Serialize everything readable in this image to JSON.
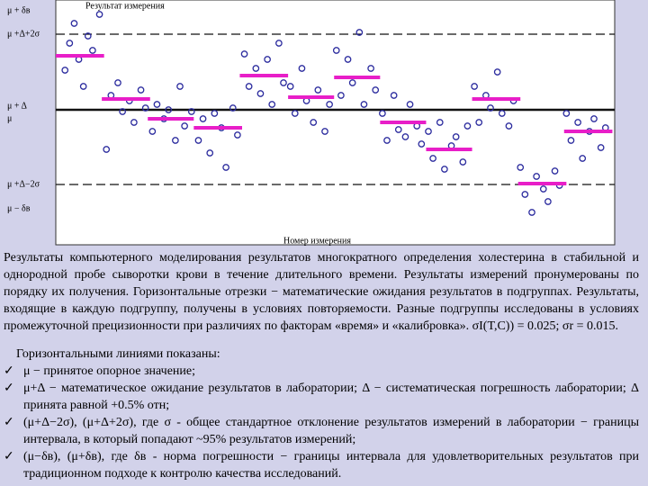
{
  "chart_data": {
    "type": "scatter",
    "title": "Результат измерения",
    "x_label": "Номер измерения",
    "color": "#2b2b9e",
    "segment_color": "#e81ec8",
    "xlim": [
      -3,
      240
    ],
    "ylim": [
      -136,
      136
    ],
    "yticks": [
      {
        "value": 124,
        "label": "μ + δв"
      },
      {
        "value": 98,
        "label": "μ +Δ+2σ"
      },
      {
        "value": 18,
        "label": "μ + Δ"
      },
      {
        "value": 4,
        "label": "μ"
      },
      {
        "value": -69,
        "label": "μ +Δ−2σ"
      },
      {
        "value": -96,
        "label": "μ − δв"
      }
    ],
    "lines": [
      {
        "value": 98,
        "style": "dashed"
      },
      {
        "value": 14,
        "style": "solid"
      },
      {
        "value": -69,
        "style": "dashed"
      }
    ],
    "series": [
      {
        "x": [
          1,
          3,
          5,
          7,
          9,
          11,
          13,
          16
        ],
        "values": [
          58,
          88,
          110,
          70,
          40,
          96,
          80,
          120
        ]
      },
      {
        "x": [
          19,
          21,
          24,
          26,
          29,
          31,
          34,
          36
        ],
        "values": [
          -30,
          30,
          44,
          12,
          24,
          0,
          36,
          16
        ]
      },
      {
        "x": [
          39,
          41,
          44,
          46,
          49,
          51,
          53,
          56
        ],
        "values": [
          -10,
          20,
          4,
          14,
          -20,
          40,
          -4,
          12
        ]
      },
      {
        "x": [
          59,
          61,
          64,
          66,
          69,
          71,
          74,
          76
        ],
        "values": [
          -20,
          4,
          -34,
          10,
          -6,
          -50,
          16,
          -14
        ]
      },
      {
        "x": [
          79,
          81,
          84,
          86,
          89,
          91,
          94,
          96
        ],
        "values": [
          76,
          40,
          60,
          32,
          70,
          20,
          88,
          44
        ]
      },
      {
        "x": [
          99,
          101,
          104,
          106,
          109,
          111,
          114,
          116
        ],
        "values": [
          40,
          10,
          60,
          24,
          0,
          36,
          -10,
          20
        ]
      },
      {
        "x": [
          119,
          121,
          124,
          126,
          129,
          131,
          134,
          136
        ],
        "values": [
          80,
          30,
          70,
          44,
          100,
          20,
          60,
          36
        ]
      },
      {
        "x": [
          139,
          141,
          144,
          146,
          149,
          151,
          154,
          156
        ],
        "values": [
          10,
          -20,
          30,
          -8,
          -16,
          20,
          -4,
          -24
        ]
      },
      {
        "x": [
          159,
          161,
          164,
          166,
          169,
          171,
          174,
          176
        ],
        "values": [
          -10,
          -40,
          0,
          -52,
          -26,
          -16,
          -44,
          -4
        ]
      },
      {
        "x": [
          179,
          181,
          184,
          186,
          189,
          191,
          194,
          196
        ],
        "values": [
          40,
          0,
          30,
          16,
          56,
          10,
          -4,
          24
        ]
      },
      {
        "x": [
          199,
          201,
          204,
          206,
          209,
          211,
          214,
          216
        ],
        "values": [
          -50,
          -80,
          -100,
          -60,
          -74,
          -88,
          -54,
          -70
        ]
      },
      {
        "x": [
          219,
          221,
          224,
          226,
          229,
          231,
          234,
          236
        ],
        "values": [
          10,
          -20,
          0,
          -40,
          -10,
          4,
          -28,
          -6
        ]
      }
    ],
    "segments": [
      {
        "x": [
          -3,
          18
        ],
        "value": 74
      },
      {
        "x": [
          17,
          38
        ],
        "value": 26
      },
      {
        "x": [
          37,
          57
        ],
        "value": 4
      },
      {
        "x": [
          57,
          78
        ],
        "value": -6
      },
      {
        "x": [
          77,
          98
        ],
        "value": 52
      },
      {
        "x": [
          98,
          118
        ],
        "value": 28
      },
      {
        "x": [
          118,
          138
        ],
        "value": 50
      },
      {
        "x": [
          138,
          158
        ],
        "value": 0
      },
      {
        "x": [
          158,
          178
        ],
        "value": -30
      },
      {
        "x": [
          178,
          199
        ],
        "value": 26
      },
      {
        "x": [
          198,
          219
        ],
        "value": -68
      },
      {
        "x": [
          218,
          239
        ],
        "value": -10
      }
    ]
  },
  "text": {
    "paragraph": "Результаты компьютерного моделирования результатов многократного определения холестерина в стабильной и однородной пробе сыворотки крови в течение длительного времени. Результаты измерений пронумерованы по порядку их получения. Горизонтальные отрезки − математические ожидания результатов в подгруппах. Результаты, входящие в каждую подгруппу, получены в условиях повторяемости. Разные подгруппы исследованы в условиях промежуточной прецизионности при различиях по факторам «время» и «калибровка». σI(T,C)) = 0.025; σr = 0.015.",
    "list_title": "Горизонтальными линиями показаны:",
    "items": [
      "μ − принятое опорное значение;",
      "μ+Δ − математическое ожидание результатов в лаборатории; Δ − систематическая погрешность лаборатории; Δ принята равной +0.5% отн;",
      "(μ+Δ−2σ), (μ+Δ+2σ), где σ - общее стандартное отклонение результатов измерений в лаборатории − границы интервала, в который попадают ~95% результатов измерений;",
      "(μ−δв), (μ+δв), где δв - норма погрешности − границы интервала для удовлетворительных результатов при традиционном подходе к контролю качества исследований."
    ]
  }
}
